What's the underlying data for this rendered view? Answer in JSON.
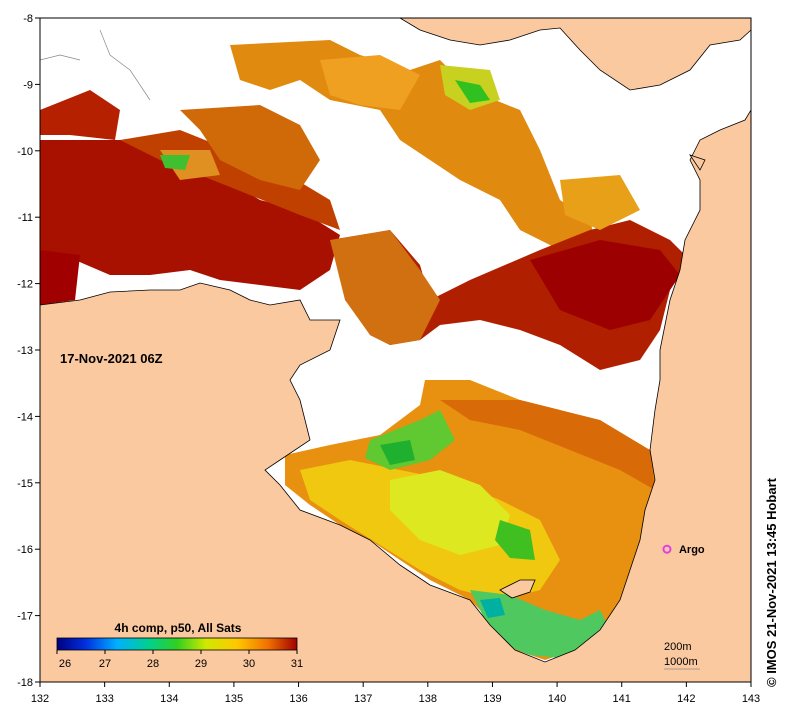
{
  "map": {
    "date_label": "17-Nov-2021 06Z",
    "credit": "© IMOS 21-Nov-2021 13:45 Hobart",
    "x_ticks": [
      "132",
      "133",
      "134",
      "135",
      "136",
      "137",
      "138",
      "139",
      "140",
      "141",
      "142",
      "143"
    ],
    "y_ticks": [
      "-8",
      "-9",
      "-10",
      "-11",
      "-12",
      "-13",
      "-14",
      "-15",
      "-16",
      "-17",
      "-18"
    ],
    "lon_range": [
      132,
      143
    ],
    "lat_range": [
      -18,
      -8
    ],
    "float_marker": {
      "label": "Argo",
      "lon": 141.7,
      "lat": -16.0,
      "color": "#e040e0"
    },
    "contour_legend": {
      "line1": "200m",
      "line2": "1000m"
    }
  },
  "colorbar": {
    "title": "4h comp, p50, All Sats",
    "ticks": [
      "26",
      "27",
      "28",
      "29",
      "30",
      "31"
    ],
    "min": 26,
    "max": 31
  },
  "colors": {
    "land": "#fbc9a0",
    "ocean_nodata": "#ffffff",
    "sst_hot": "#a50000",
    "sst_warm": "#e07000",
    "sst_mid": "#f0c000",
    "sst_cool": "#d8e800",
    "sst_cold": "#20c020"
  }
}
